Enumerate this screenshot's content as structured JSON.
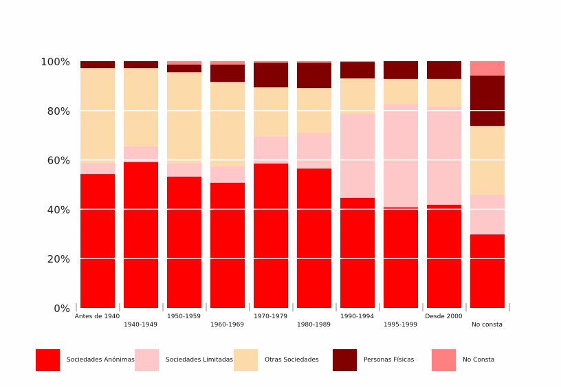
{
  "chart_data": {
    "type": "bar",
    "stacked": true,
    "percent": true,
    "title": "",
    "xlabel": "",
    "ylabel": "",
    "ylim": [
      0,
      100
    ],
    "yticks": [
      "0%",
      "20%",
      "40%",
      "60%",
      "80%",
      "100%"
    ],
    "grid": true,
    "legend_position": "bottom",
    "categories": [
      "Antes de 1940",
      "1940-1949",
      "1950-1959",
      "1960-1969",
      "1970-1979",
      "1980-1989",
      "1990-1994",
      "1995-1999",
      "Desde 2000",
      "No consta"
    ],
    "series": [
      {
        "name": "Sociedades Anónimas",
        "color": "#ff0000",
        "values": [
          54.3,
          59.1,
          53.2,
          50.7,
          58.5,
          56.5,
          44.6,
          40.8,
          41.8,
          29.8
        ]
      },
      {
        "name": "Sociedades Limitadas",
        "color": "#ffc8c8",
        "values": [
          4.5,
          6.4,
          5.3,
          6.7,
          11.1,
          14.5,
          34.2,
          41.9,
          39.8,
          16.2
        ]
      },
      {
        "name": "Otras Sociedades",
        "color": "#fddaaa",
        "values": [
          38.4,
          31.7,
          37.0,
          34.2,
          19.8,
          18.1,
          14.2,
          10.1,
          11.2,
          27.8
        ]
      },
      {
        "name": "Personas Físicas",
        "color": "#800000",
        "values": [
          2.8,
          2.8,
          3.1,
          7.0,
          10.0,
          10.3,
          6.7,
          7.2,
          7.2,
          20.4
        ]
      },
      {
        "name": "No Consta",
        "color": "#ff8080",
        "values": [
          0.0,
          0.0,
          1.4,
          1.4,
          0.6,
          0.6,
          0.3,
          0.0,
          0.0,
          5.8
        ]
      }
    ]
  }
}
